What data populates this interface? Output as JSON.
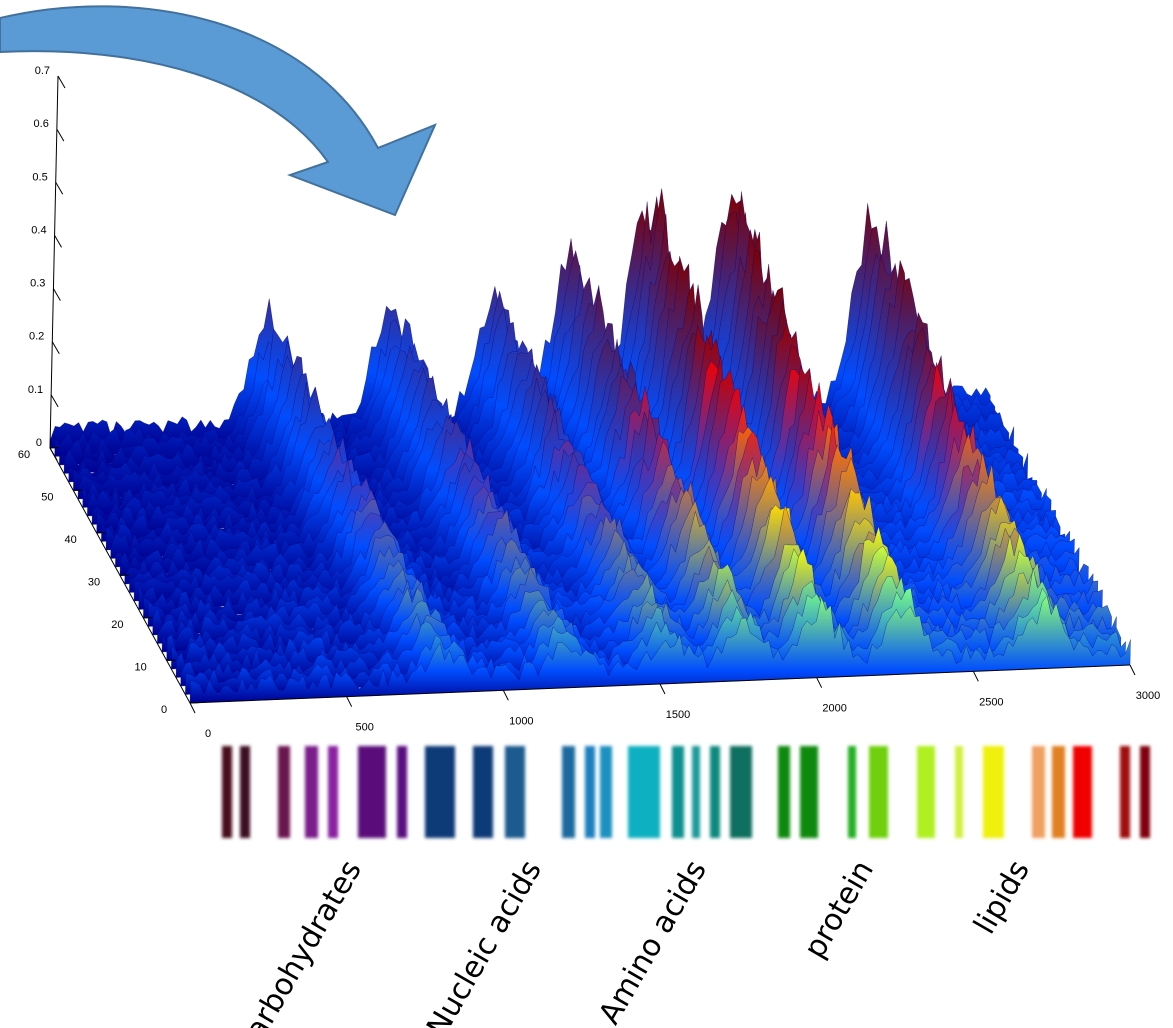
{
  "chart_data": {
    "type": "surface",
    "xlim": [
      0,
      3000
    ],
    "ylim": [
      0,
      60
    ],
    "zlim": [
      0,
      0.7
    ],
    "xticks": [
      0,
      500,
      1000,
      1500,
      2000,
      2500,
      3000
    ],
    "yticks": [
      0,
      10,
      20,
      30,
      40,
      50,
      60
    ],
    "zticks": [
      0,
      0.1,
      0.2,
      0.3,
      0.4,
      0.5,
      0.6,
      0.7
    ],
    "categories": [
      "carbohydrates",
      "Nucleic acids",
      "Amino acids",
      "protein",
      "lipids"
    ]
  }
}
